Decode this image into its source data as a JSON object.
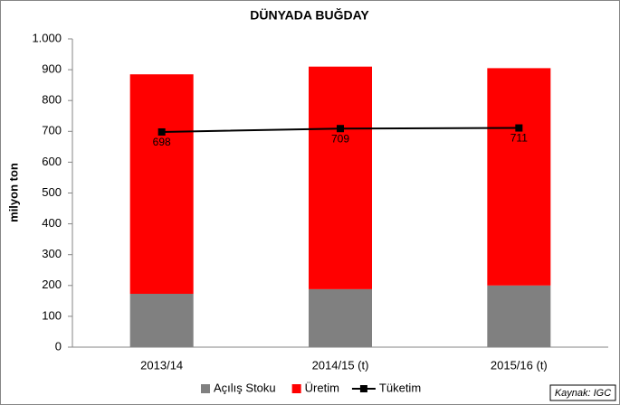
{
  "chart_data": {
    "type": "bar",
    "stacked": true,
    "title": "DÜNYADA BUĞDAY",
    "y_label": "milyon ton",
    "categories": [
      "2013/14",
      "2014/15 (t)",
      "2015/16 (t)"
    ],
    "series": [
      {
        "name": "Açılış Stoku",
        "type": "bar",
        "color": "#808080",
        "values": [
          173,
          188,
          200
        ]
      },
      {
        "name": "Üretim",
        "type": "bar",
        "color": "#ff0000",
        "values": [
          712,
          722,
          705
        ]
      },
      {
        "name": "Tüketim",
        "type": "line",
        "color": "#000000",
        "values": [
          698,
          709,
          711
        ]
      }
    ],
    "ylim": [
      0,
      1000
    ],
    "yticks": [
      0,
      100,
      200,
      300,
      400,
      500,
      600,
      700,
      800,
      900,
      {
        "value": 1000,
        "label": "1.000"
      }
    ],
    "grid": false,
    "legend": "bottom",
    "annotation": "Kaynak: IGC"
  }
}
